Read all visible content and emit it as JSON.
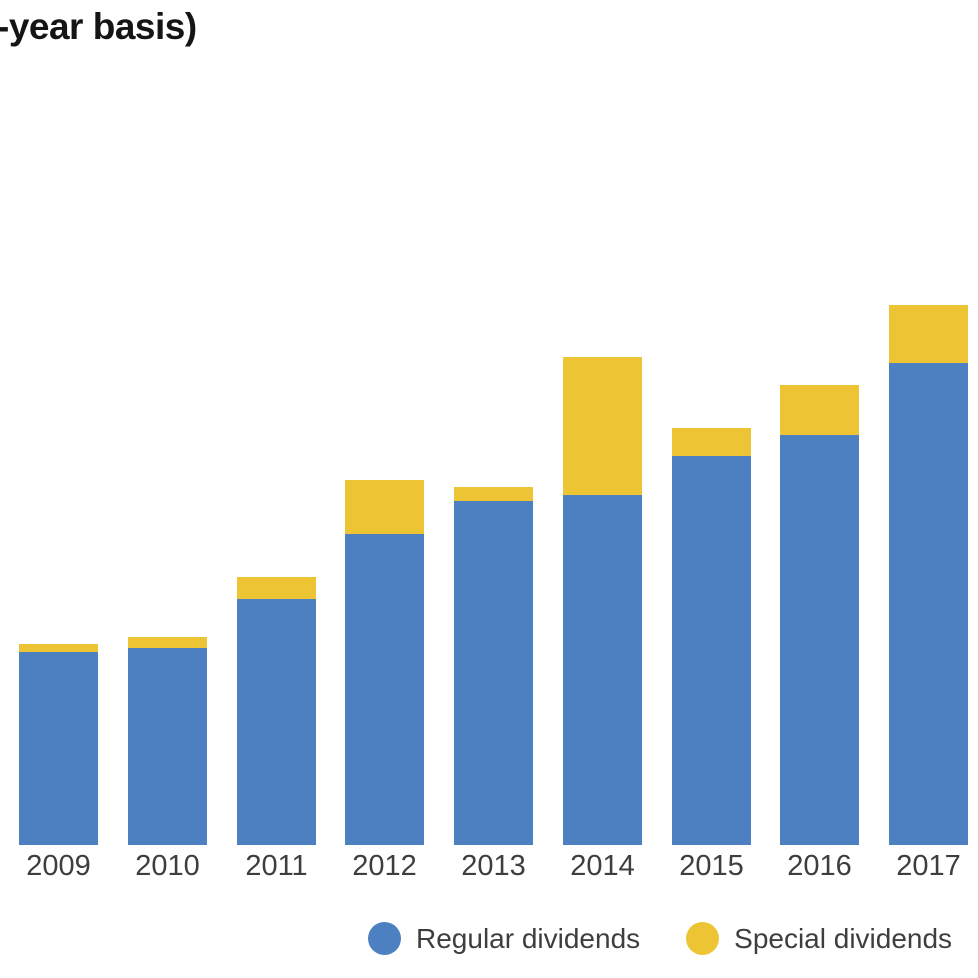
{
  "title": "-year basis)",
  "chart_data": {
    "type": "bar",
    "stacked": true,
    "title": "-year basis)",
    "xlabel": "",
    "ylabel": "",
    "categories": [
      "2009",
      "2010",
      "2011",
      "2012",
      "2013",
      "2014",
      "2015",
      "2016",
      "2017"
    ],
    "series": [
      {
        "name": "Regular dividends",
        "color": "#4c80c0",
        "values": [
          193,
          197,
          246,
          311,
          344,
          350,
          389,
          410,
          482
        ]
      },
      {
        "name": "Special dividends",
        "color": "#ecc434",
        "values": [
          8,
          11,
          22,
          54,
          14,
          138,
          28,
          50,
          58
        ]
      }
    ],
    "value_units": "relative bar height (chart shows no value axis)",
    "ylim": [
      0,
      560
    ],
    "grid": false,
    "value_axis_visible": false,
    "legend_position": "bottom"
  }
}
